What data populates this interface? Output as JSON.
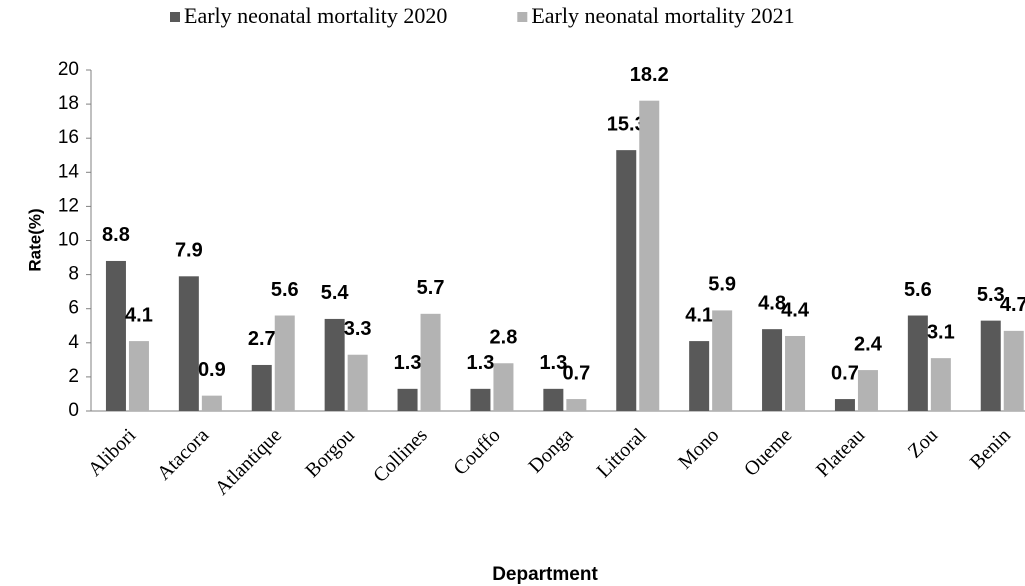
{
  "chart_data": {
    "type": "bar",
    "categories": [
      "Alibori",
      "Atacora",
      "Atlantique",
      "Borgou",
      "Collines",
      "Couffo",
      "Donga",
      "Littoral",
      "Mono",
      "Oueme",
      "Plateau",
      "Zou",
      "Benin"
    ],
    "series": [
      {
        "name": "Early neonatal mortality 2020",
        "color": "#595959",
        "values": [
          8.8,
          7.9,
          2.7,
          5.4,
          1.3,
          1.3,
          1.3,
          15.3,
          4.1,
          4.8,
          0.7,
          5.6,
          5.3
        ]
      },
      {
        "name": "Early neonatal mortality 2021",
        "color": "#b3b3b3",
        "values": [
          4.1,
          0.9,
          5.6,
          3.3,
          5.7,
          2.8,
          0.7,
          18.2,
          5.9,
          4.4,
          2.4,
          3.1,
          4.7
        ]
      }
    ],
    "x_label": "Department",
    "y_label": "Rate(%)",
    "ylim": [
      0,
      20
    ],
    "yticks": [
      0,
      2,
      4,
      6,
      8,
      10,
      12,
      14,
      16,
      18,
      20
    ],
    "grid": false,
    "legend": "top"
  }
}
